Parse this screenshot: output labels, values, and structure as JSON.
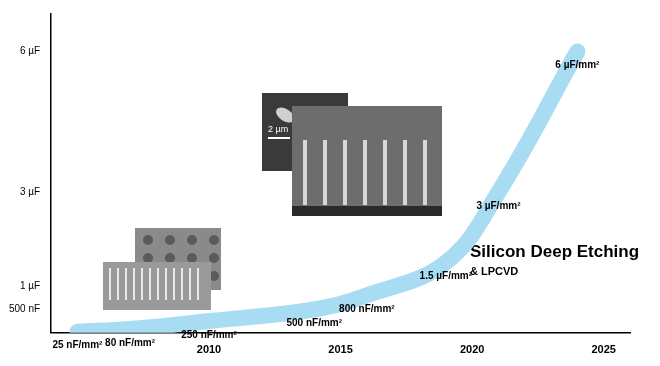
{
  "chart_data": {
    "type": "line",
    "x": [
      2005,
      2007,
      2010,
      2014,
      2016,
      2019,
      2021,
      2024
    ],
    "values": [
      25,
      80,
      250,
      500,
      800,
      1500,
      3000,
      6000
    ],
    "value_labels": [
      "25 nF/mm²",
      "80 nF/mm²",
      "250 nF/mm²",
      "500 nF/mm²",
      "800 nF/mm²",
      "1.5 µF/mm²",
      "3 µF/mm²",
      "6 µF/mm²"
    ],
    "data_labels": true,
    "color": "#a8dcf3",
    "xlim": [
      2004,
      2026
    ],
    "xticks": [
      2010,
      2015,
      2020,
      2025
    ],
    "ylim": [
      0,
      6800
    ],
    "yticks": [
      {
        "value": 500,
        "label": "500 nF"
      },
      {
        "value": 1000,
        "label": "1 µF"
      },
      {
        "value": 3000,
        "label": "3 µF"
      },
      {
        "value": 6000,
        "label": "6 µF"
      }
    ],
    "grid": false,
    "annotations": [
      "Silicon Deep Etching",
      "& LPCVD",
      "2 µm"
    ]
  }
}
